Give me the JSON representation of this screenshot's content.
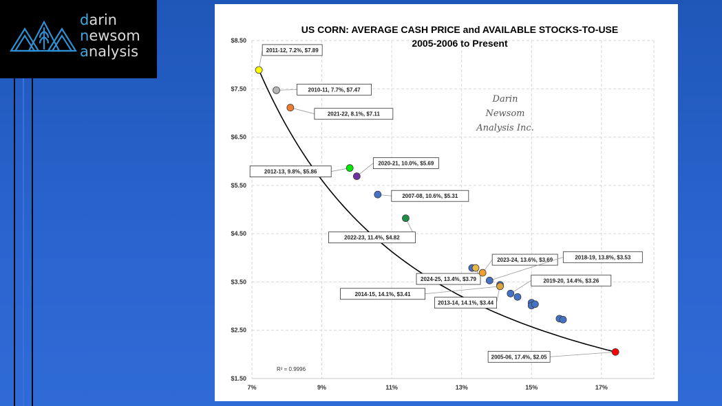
{
  "logo": {
    "brand_lines": [
      {
        "accent": "d",
        "rest": "arin"
      },
      {
        "accent": "n",
        "rest": "ewsom"
      },
      {
        "accent": "a",
        "rest": "nalysis"
      }
    ],
    "icon": "mountain-wheat-logo-icon",
    "colors": {
      "accent": "#3fa9e0",
      "text": "#dcdcdc",
      "background": "#000000"
    }
  },
  "watermark": [
    "Darin",
    "Newsom",
    "Analysis Inc."
  ],
  "chart_data": {
    "type": "scatter",
    "title": "US CORN: AVERAGE CASH PRICE and AVAILABLE STOCKS-TO-USE",
    "subtitle": "2005-2006 to Present",
    "xlabel": "",
    "ylabel": "",
    "xlim": [
      7,
      18.5
    ],
    "ylim": [
      1.5,
      8.5
    ],
    "x_ticks": [
      {
        "v": 7,
        "label": "7%"
      },
      {
        "v": 9,
        "label": "9%"
      },
      {
        "v": 11,
        "label": "11%"
      },
      {
        "v": 13,
        "label": "13%"
      },
      {
        "v": 15,
        "label": "15%"
      },
      {
        "v": 17,
        "label": "17%"
      }
    ],
    "y_ticks": [
      {
        "v": 1.5,
        "label": "$1.50"
      },
      {
        "v": 2.5,
        "label": "$2.50"
      },
      {
        "v": 3.5,
        "label": "$3.50"
      },
      {
        "v": 4.5,
        "label": "$4.50"
      },
      {
        "v": 5.5,
        "label": "$5.50"
      },
      {
        "v": 6.5,
        "label": "$6.50"
      },
      {
        "v": 7.5,
        "label": "$7.50"
      },
      {
        "v": 8.5,
        "label": "$8.50"
      }
    ],
    "grid": {
      "x": true,
      "y": true,
      "style": "dashed"
    },
    "trendline": {
      "type": "power",
      "r_squared_label": "R² = 0.9996"
    },
    "points": [
      {
        "x": 7.2,
        "y": 7.89,
        "color": "#ffff00",
        "label": "2011-12, 7.2%, $7.89"
      },
      {
        "x": 7.7,
        "y": 7.47,
        "color": "#b4b4b4",
        "label": "2010-11, 7.7%, $7.47"
      },
      {
        "x": 8.1,
        "y": 7.11,
        "color": "#ed7d31",
        "label": "2021-22, 8.1%, $7.11"
      },
      {
        "x": 9.8,
        "y": 5.86,
        "color": "#00e600",
        "label": "2012-13, 9.8%, $5.86"
      },
      {
        "x": 10.0,
        "y": 5.69,
        "color": "#7030a0",
        "label": "2020-21, 10.0%, $5.69"
      },
      {
        "x": 10.6,
        "y": 5.31,
        "color": "#4472c4",
        "label": "2007-08, 10.6%, $5.31"
      },
      {
        "x": 11.4,
        "y": 4.82,
        "color": "#1e8c46",
        "label": "2022-23, 11.4%, $4.82"
      },
      {
        "x": 13.3,
        "y": 3.79,
        "color": "#4472c4",
        "label": ""
      },
      {
        "x": 13.4,
        "y": 3.79,
        "color": "#e8b84a",
        "label": "2024-25, 13.4%, $3.79"
      },
      {
        "x": 13.6,
        "y": 3.69,
        "color": "#f0a030",
        "label": "2023-24, 13.6%, $3.69"
      },
      {
        "x": 13.8,
        "y": 3.53,
        "color": "#4472c4",
        "label": "2018-19, 13.8%, $3.53"
      },
      {
        "x": 14.1,
        "y": 3.44,
        "color": "#4472c4",
        "label": "2013-14, 14.1%, $3.44"
      },
      {
        "x": 14.1,
        "y": 3.41,
        "color": "#d9a640",
        "label": "2014-15, 14.1%, $3.41"
      },
      {
        "x": 14.4,
        "y": 3.26,
        "color": "#4472c4",
        "label": "2019-20, 14.4%, $3.26"
      },
      {
        "x": 14.6,
        "y": 3.19,
        "color": "#4472c4",
        "label": ""
      },
      {
        "x": 15.0,
        "y": 3.07,
        "color": "#4472c4",
        "label": ""
      },
      {
        "x": 15.0,
        "y": 3.01,
        "color": "#4472c4",
        "label": ""
      },
      {
        "x": 15.1,
        "y": 3.04,
        "color": "#4472c4",
        "label": ""
      },
      {
        "x": 15.8,
        "y": 2.74,
        "color": "#4472c4",
        "label": ""
      },
      {
        "x": 15.9,
        "y": 2.72,
        "color": "#4472c4",
        "label": ""
      },
      {
        "x": 17.4,
        "y": 2.05,
        "color": "#ff0000",
        "label": "2005-06, 17.4%, $2.05"
      }
    ]
  }
}
